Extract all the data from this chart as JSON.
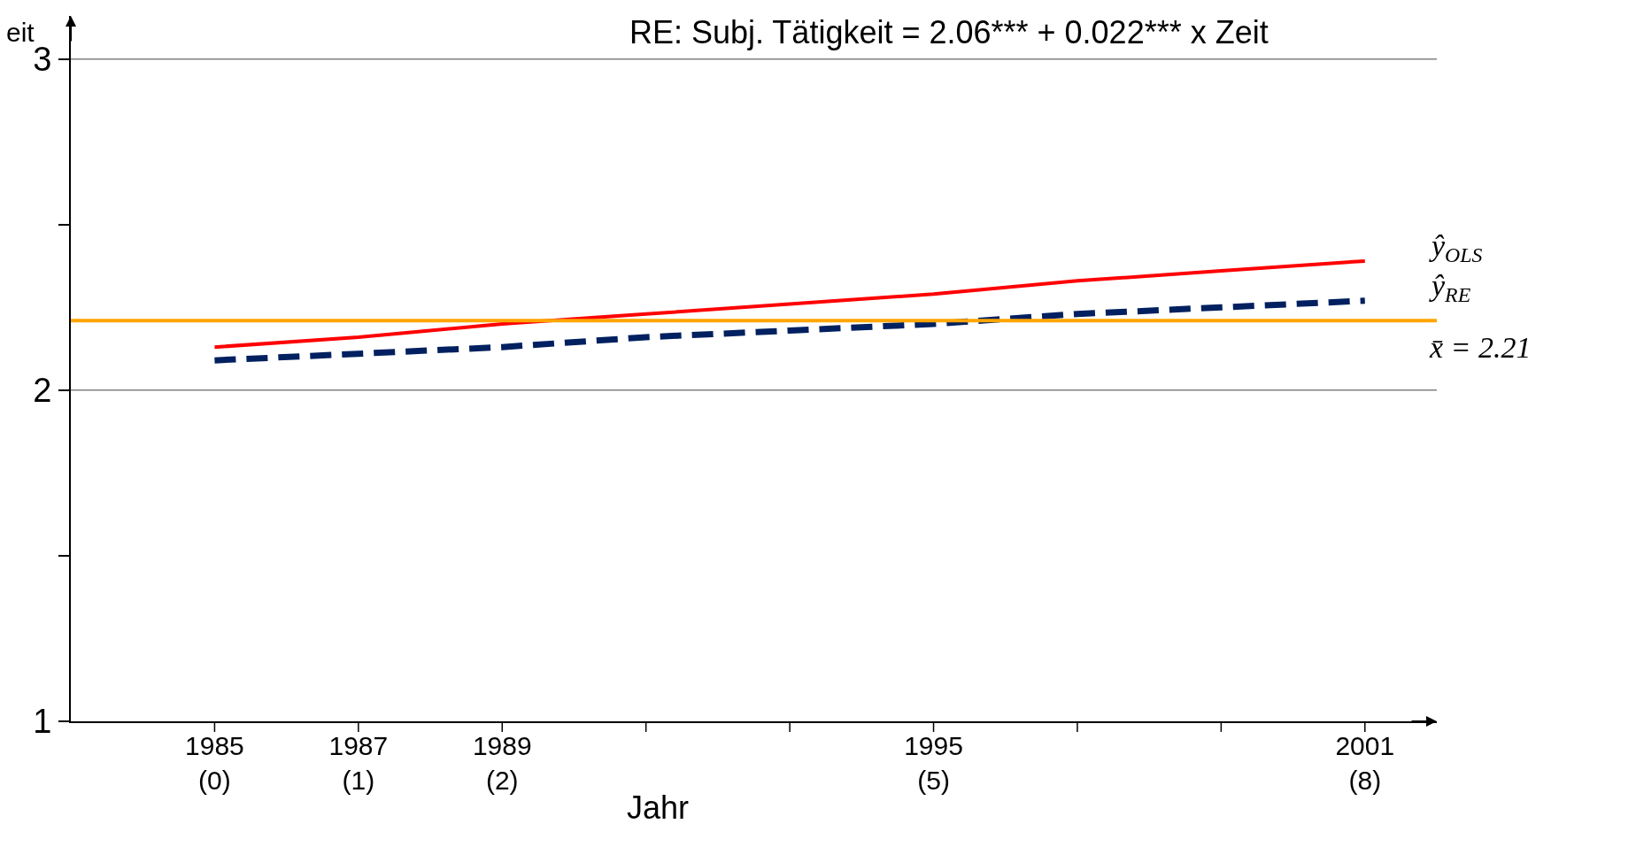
{
  "chart_data": {
    "type": "line",
    "title": "RE: Subj. Tätigkeit = 2.06*** + 0.022*** x Zeit",
    "ylabel": "eit",
    "xlabel": "Jahr",
    "categories": [
      "1985\n(0)",
      "1987\n(1)",
      "1989\n(2)",
      null,
      null,
      "1995\n(5)",
      null,
      null,
      "2001\n(8)"
    ],
    "series": [
      {
        "name": "ŷ$_{OLS}$",
        "color": "#ff0000",
        "values": [
          2.13,
          2.16,
          2.2,
          2.23,
          2.26,
          2.29,
          2.33,
          2.36,
          2.39
        ],
        "line_style": "solid"
      },
      {
        "name": "ŷ$_{RE}$",
        "color": "#002060",
        "values": [
          2.09,
          2.11,
          2.13,
          2.16,
          2.18,
          2.2,
          2.23,
          2.25,
          2.27
        ],
        "line_style": "dashed"
      }
    ],
    "ref_lines": [
      {
        "axis": "y",
        "value": 2.21,
        "label": "x̄ = 2.21",
        "color": "#ffa500"
      }
    ],
    "ylim": [
      1,
      3.13
    ],
    "yticks": [
      1,
      {
        "value": 1.5,
        "label": null
      },
      2,
      {
        "value": 2.5,
        "label": null
      },
      3
    ],
    "grid": "y",
    "legend": false,
    "marker": "none"
  }
}
